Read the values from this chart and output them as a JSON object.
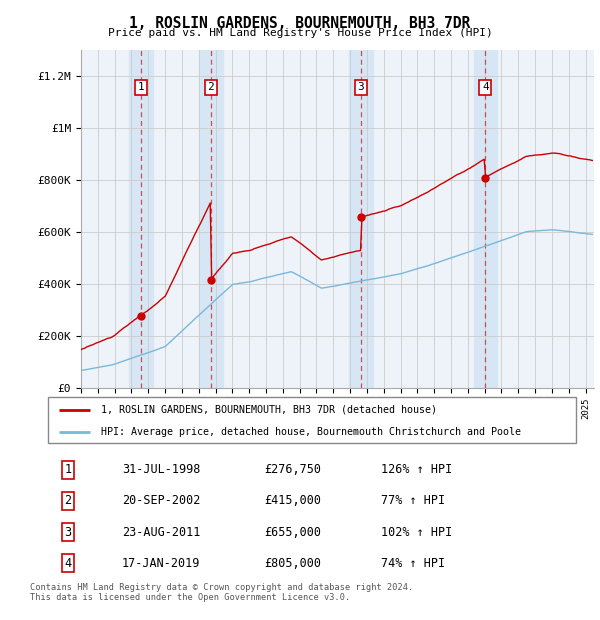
{
  "title": "1, ROSLIN GARDENS, BOURNEMOUTH, BH3 7DR",
  "subtitle": "Price paid vs. HM Land Registry's House Price Index (HPI)",
  "sale_labels": [
    "1",
    "2",
    "3",
    "4"
  ],
  "sale_dates": [
    1998.58,
    2002.72,
    2011.64,
    2019.04
  ],
  "sale_prices": [
    276750,
    415000,
    655000,
    805000
  ],
  "hpi_line_color": "#7ab8d9",
  "sale_line_color": "#cc0000",
  "dot_color": "#cc0000",
  "background_color": "#eef3fa",
  "ylim": [
    0,
    1300000
  ],
  "xlim": [
    1995.0,
    2025.5
  ],
  "yticks": [
    0,
    200000,
    400000,
    600000,
    800000,
    1000000,
    1200000
  ],
  "ytick_labels": [
    "£0",
    "£200K",
    "£400K",
    "£600K",
    "£800K",
    "£1M",
    "£1.2M"
  ],
  "xticks": [
    1995,
    1996,
    1997,
    1998,
    1999,
    2000,
    2001,
    2002,
    2003,
    2004,
    2005,
    2006,
    2007,
    2008,
    2009,
    2010,
    2011,
    2012,
    2013,
    2014,
    2015,
    2016,
    2017,
    2018,
    2019,
    2020,
    2021,
    2022,
    2023,
    2024,
    2025
  ],
  "legend_entries": [
    "1, ROSLIN GARDENS, BOURNEMOUTH, BH3 7DR (detached house)",
    "HPI: Average price, detached house, Bournemouth Christchurch and Poole"
  ],
  "table_rows": [
    [
      "1",
      "31-JUL-1998",
      "£276,750",
      "126% ↑ HPI"
    ],
    [
      "2",
      "20-SEP-2002",
      "£415,000",
      "77% ↑ HPI"
    ],
    [
      "3",
      "23-AUG-2011",
      "£655,000",
      "102% ↑ HPI"
    ],
    [
      "4",
      "17-JAN-2019",
      "£805,000",
      "74% ↑ HPI"
    ]
  ],
  "footer": "Contains HM Land Registry data © Crown copyright and database right 2024.\nThis data is licensed under the Open Government Licence v3.0.",
  "vertical_band_color": "#d6e6f5"
}
